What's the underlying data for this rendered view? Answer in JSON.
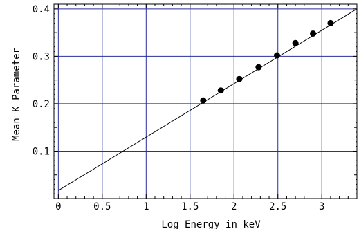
{
  "chart_data": {
    "type": "scatter",
    "title": "",
    "xlabel": "Log Energy in keV",
    "ylabel": "Mean K Parameter",
    "xlim": [
      -0.05,
      3.4
    ],
    "ylim": [
      0.0,
      0.41
    ],
    "grid": true,
    "x_ticks": [
      0,
      0.5,
      1,
      1.5,
      2,
      2.5,
      3
    ],
    "x_tick_labels": [
      "0",
      "0.5",
      "1",
      "1.5",
      "2",
      "2.5",
      "3"
    ],
    "y_ticks": [
      0.1,
      0.2,
      0.3,
      0.4
    ],
    "y_tick_labels": [
      "0.1",
      "0.2",
      "0.3",
      "0.4"
    ],
    "series": [
      {
        "type": "scatter",
        "x": [
          1.65,
          1.85,
          2.06,
          2.28,
          2.49,
          2.7,
          2.9,
          3.1
        ],
        "y": [
          0.207,
          0.228,
          0.252,
          0.277,
          0.302,
          0.328,
          0.348,
          0.37
        ]
      },
      {
        "type": "line",
        "x": [
          0.0,
          3.4
        ],
        "y": [
          0.017,
          0.4
        ]
      }
    ],
    "colors": {
      "grid": "#2a2f9a",
      "marks": "#000000"
    }
  }
}
